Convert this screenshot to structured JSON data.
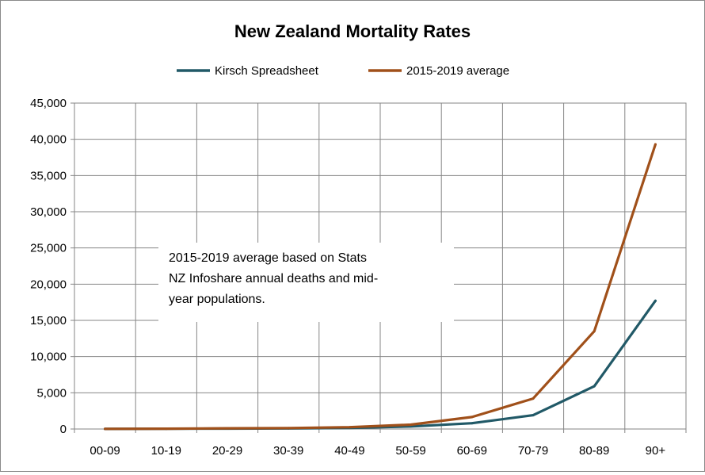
{
  "chart_data": {
    "type": "line",
    "title": "New Zealand Mortality Rates",
    "categories": [
      "00-09",
      "10-19",
      "20-29",
      "30-39",
      "40-49",
      "50-59",
      "60-69",
      "70-79",
      "80-89",
      "90+"
    ],
    "series": [
      {
        "name": "Kirsch Spreadsheet",
        "color": "#215967",
        "values": [
          10,
          30,
          60,
          80,
          150,
          350,
          800,
          1900,
          5900,
          17700
        ]
      },
      {
        "name": "2015-2019 average",
        "color": "#A0501A",
        "values": [
          20,
          40,
          100,
          130,
          250,
          600,
          1650,
          4200,
          13500,
          39300
        ]
      }
    ],
    "ylim": [
      0,
      45000
    ],
    "yticks": [
      "0",
      "5,000",
      "10,000",
      "15,000",
      "20,000",
      "25,000",
      "30,000",
      "35,000",
      "40,000",
      "45,000"
    ],
    "xlabel": "",
    "ylabel": "",
    "grid": true,
    "legend_position": "top",
    "annotation": [
      "2015-2019 average based on Stats",
      "NZ Infoshare annual deaths and mid-",
      "year populations."
    ]
  }
}
